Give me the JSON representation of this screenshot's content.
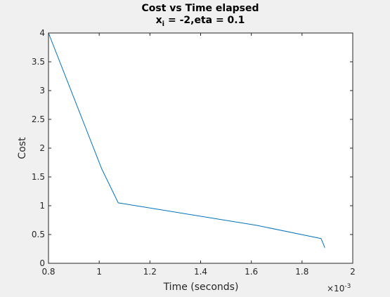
{
  "chart_data": {
    "type": "line",
    "title": "Cost vs Time elapsed",
    "subtitle_prefix": "x",
    "subtitle_subscript": "i",
    "subtitle_rest": " = -2,eta = 0.1",
    "xlabel": "Time (seconds)",
    "ylabel": "Cost",
    "x_multiplier_label": "×10",
    "x_multiplier_exponent": "-3",
    "xlim": [
      0.8,
      2.0
    ],
    "ylim": [
      0,
      4
    ],
    "x_ticks": [
      0.8,
      1.0,
      1.2,
      1.4,
      1.6,
      1.8,
      2.0
    ],
    "x_tick_labels": [
      "0.8",
      "1",
      "1.2",
      "1.4",
      "1.6",
      "1.8",
      "2"
    ],
    "y_ticks": [
      0,
      0.5,
      1,
      1.5,
      2,
      2.5,
      3,
      3.5,
      4
    ],
    "y_tick_labels": [
      "0",
      "0.5",
      "1",
      "1.5",
      "2",
      "2.5",
      "3",
      "3.5",
      "4"
    ],
    "grid": false,
    "series": [
      {
        "color": "#0072bd",
        "x": [
          0.8,
          1.01,
          1.075,
          1.62,
          1.875,
          1.89
        ],
        "y": [
          4.0,
          1.64,
          1.05,
          0.66,
          0.43,
          0.27
        ]
      }
    ]
  }
}
